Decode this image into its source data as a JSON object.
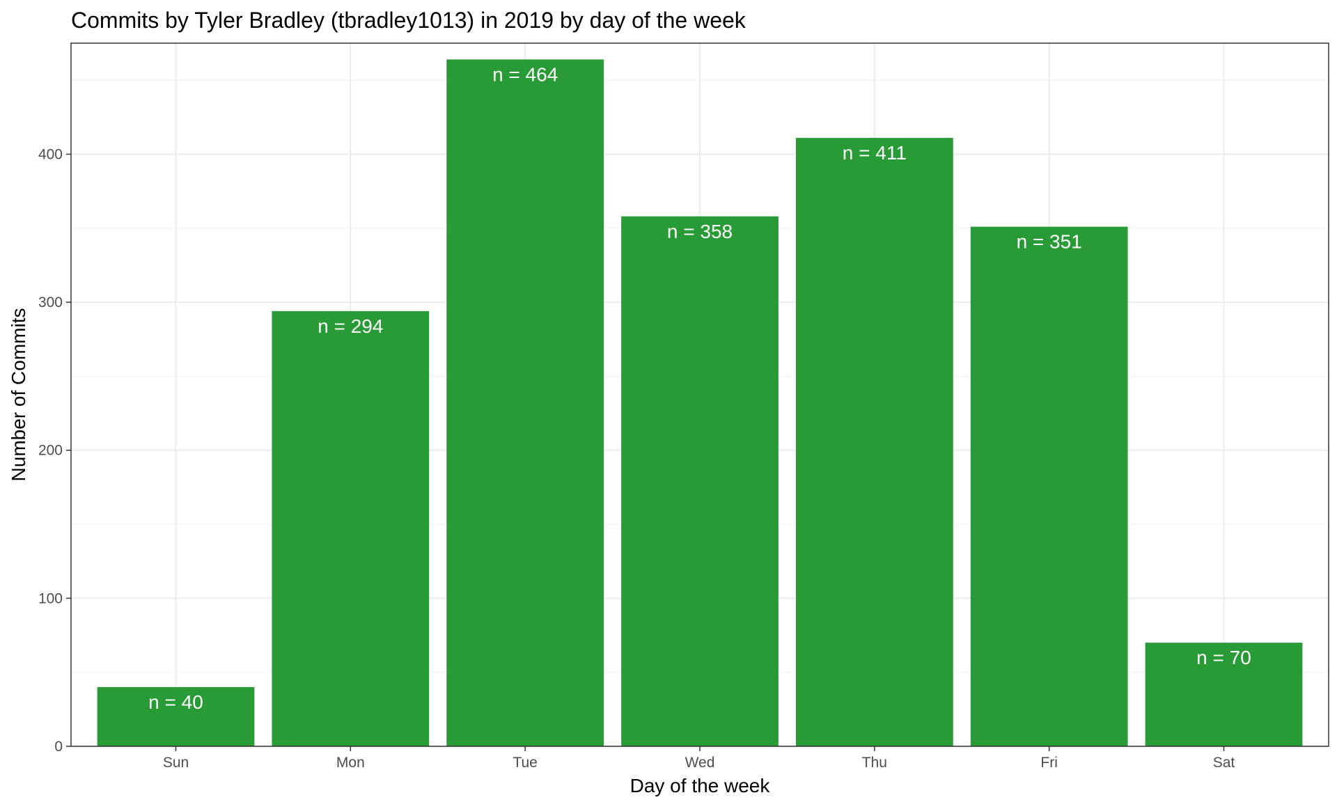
{
  "chart_data": {
    "type": "bar",
    "title": "Commits by Tyler Bradley (tbradley1013) in 2019 by day of the week",
    "xlabel": "Day of the week",
    "ylabel": "Number of Commits",
    "categories": [
      "Sun",
      "Mon",
      "Tue",
      "Wed",
      "Thu",
      "Fri",
      "Sat"
    ],
    "values": [
      40,
      294,
      464,
      358,
      411,
      351,
      70
    ],
    "labels": [
      "n = 40",
      "n = 294",
      "n = 464",
      "n = 358",
      "n = 411",
      "n = 351",
      "n = 70"
    ],
    "ylim": [
      0,
      475
    ],
    "yticks": [
      0,
      100,
      200,
      300,
      400
    ],
    "ytick_labels": [
      "0",
      "100",
      "200",
      "300",
      "400"
    ],
    "grid": true,
    "legend": "none",
    "colors": {
      "bar": "#289b36",
      "bar_label": "#ffffff",
      "panel_border": "#333333",
      "grid": "#ebebeb"
    }
  }
}
